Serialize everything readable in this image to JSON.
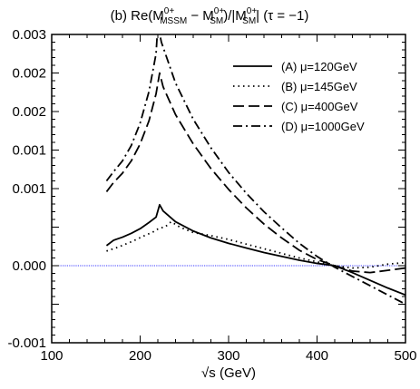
{
  "chart_data": {
    "type": "line",
    "title": {
      "prefix": "(b) Re(M",
      "sup_mssm": "0+",
      "sub_mssm": "MSSM",
      "mid": " − M",
      "sup_sm1": "0+",
      "sub_sm1": "SM",
      "mid2": ")/|M",
      "sup_sm2": "0+",
      "sub_sm2": "SM",
      "suffix": "|   (τ = −1)"
    },
    "xlabel": "√s (GeV)",
    "ylabel": "",
    "xlim": [
      100,
      500
    ],
    "ylim": [
      -0.001,
      0.003
    ],
    "xticks": [
      {
        "value": 100,
        "label": "100"
      },
      {
        "value": 200,
        "label": "200"
      },
      {
        "value": 300,
        "label": "300"
      },
      {
        "value": 400,
        "label": "400"
      },
      {
        "value": 500,
        "label": "500"
      }
    ],
    "yticks": [
      {
        "value": -0.001,
        "label": "-0.001"
      },
      {
        "value": 0.0,
        "label": "0.000"
      },
      {
        "value": 0.001,
        "label": "0.001"
      },
      {
        "value": 0.0015,
        "label": "0.001"
      },
      {
        "value": 0.002,
        "label": "0.002"
      },
      {
        "value": 0.0025,
        "label": "0.002"
      },
      {
        "value": 0.003,
        "label": "0.003"
      }
    ],
    "reference_line": {
      "y": 0.0,
      "color": "#3a3aff"
    },
    "legend_position": "top-right",
    "series": [
      {
        "name": "(A) μ=120GeV",
        "dash": "solid",
        "x": [
          162,
          170,
          180,
          190,
          200,
          210,
          218,
          222,
          226,
          240,
          260,
          280,
          300,
          320,
          340,
          360,
          380,
          400,
          420,
          440,
          460,
          480,
          500
        ],
        "y": [
          0.00026,
          0.00033,
          0.00037,
          0.00042,
          0.00048,
          0.00056,
          0.00063,
          0.00079,
          0.00071,
          0.00057,
          0.00045,
          0.00036,
          0.00029,
          0.00023,
          0.00017,
          0.00012,
          7e-05,
          3e-05,
          0.0,
          -9e-05,
          -0.00019,
          -0.00029,
          -0.00038
        ]
      },
      {
        "name": "(B) μ=145GeV",
        "dash": "dotted",
        "x": [
          162,
          175,
          190,
          205,
          215,
          222,
          228,
          235,
          245,
          260,
          280,
          300,
          320,
          340,
          360,
          380,
          400,
          420,
          440,
          460,
          480,
          500
        ],
        "y": [
          0.00019,
          0.00024,
          0.00031,
          0.00039,
          0.00044,
          0.00049,
          0.0005,
          0.00057,
          0.0005,
          0.00043,
          0.00039,
          0.00034,
          0.00028,
          0.00022,
          0.00016,
          0.0001,
          5e-05,
          0.0,
          -3e-05,
          -2e-05,
          2e-05,
          4e-05
        ]
      },
      {
        "name": "(C) μ=400GeV",
        "dash": "dashed",
        "x": [
          162,
          170,
          180,
          190,
          200,
          210,
          218,
          222,
          226,
          240,
          260,
          280,
          300,
          320,
          340,
          360,
          380,
          400,
          420,
          440,
          460,
          480,
          500
        ],
        "y": [
          0.00096,
          0.00108,
          0.0012,
          0.00136,
          0.00158,
          0.00188,
          0.00223,
          0.0025,
          0.00232,
          0.00196,
          0.00158,
          0.00126,
          0.00099,
          0.00075,
          0.00054,
          0.00036,
          0.0002,
          8e-05,
          0.0,
          -7e-05,
          -9e-05,
          -6e-05,
          -3e-05
        ]
      },
      {
        "name": "(D) μ=1000GeV",
        "dash": "dashdot",
        "x": [
          162,
          170,
          180,
          190,
          200,
          210,
          218,
          220,
          224,
          240,
          260,
          280,
          300,
          320,
          340,
          360,
          380,
          400,
          420,
          440,
          460,
          480,
          500
        ],
        "y": [
          0.0011,
          0.00122,
          0.00136,
          0.00156,
          0.00185,
          0.00226,
          0.00275,
          0.00313,
          0.0029,
          0.00237,
          0.0019,
          0.00153,
          0.00121,
          0.00094,
          0.0007,
          0.00049,
          0.00029,
          0.00012,
          -2e-05,
          -0.00014,
          -0.00026,
          -0.00038,
          -0.0005
        ]
      }
    ]
  }
}
